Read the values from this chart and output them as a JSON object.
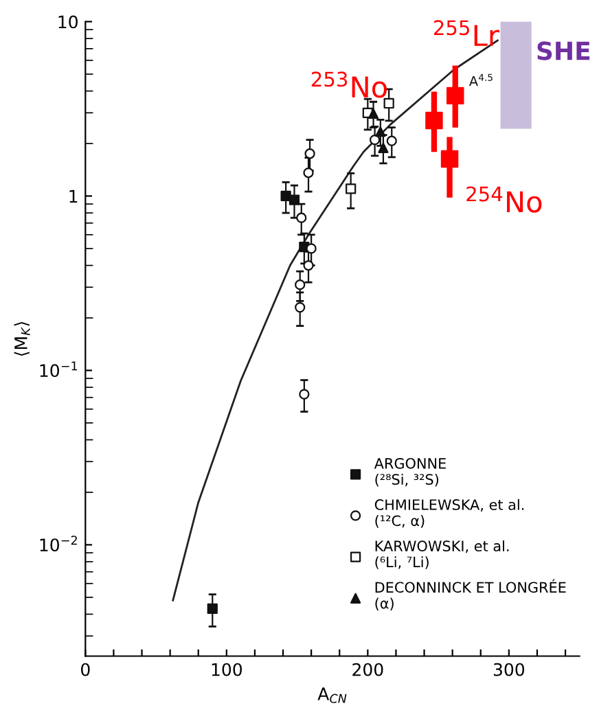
{
  "chart_data": {
    "type": "scatter",
    "xlabel": "A$_{CN}$",
    "ylabel": "⟨M$_{K}$⟩",
    "log": "y",
    "grid": false,
    "legend": "bottom right",
    "xlim": [
      0,
      350
    ],
    "ylim": [
      0.0023,
      10
    ],
    "xticks": [
      0,
      {
        "value": 20,
        "label": null
      },
      {
        "value": 40,
        "label": null
      },
      {
        "value": 60,
        "label": null
      },
      {
        "value": 80,
        "label": null
      },
      100,
      {
        "value": 120,
        "label": null
      },
      {
        "value": 140,
        "label": null
      },
      {
        "value": 160,
        "label": null
      },
      {
        "value": 180,
        "label": null
      },
      200,
      {
        "value": 220,
        "label": null
      },
      {
        "value": 240,
        "label": null
      },
      {
        "value": 260,
        "label": null
      },
      {
        "value": 280,
        "label": null
      },
      300,
      {
        "value": 320,
        "label": null
      },
      {
        "value": 340,
        "label": null
      }
    ],
    "yticks": [
      {
        "value": 0.01,
        "label": "10$^{−2}$"
      },
      {
        "value": 0.1,
        "label": "10$^{−1}$"
      },
      1,
      10
    ],
    "series": [
      {
        "type": "line",
        "color": "#222222",
        "x": [
          62,
          80,
          110,
          145,
          158,
          190,
          197,
          216,
          261,
          292
        ],
        "values": [
          0.0048,
          0.0175,
          0.087,
          0.4,
          0.6,
          1.49,
          1.79,
          2.57,
          5.3,
          7.8
        ]
      },
      {
        "name": "ARGONNE\n(²⁸Si, ³²S)",
        "marker": "square",
        "color": "#111111",
        "x": [
          90,
          142,
          148,
          155
        ],
        "values": [
          0.0043,
          1.0,
          0.95,
          0.51
        ],
        "errors": [
          0.0009,
          0.2,
          0.2,
          0.1
        ]
      },
      {
        "name": "CHMIELEWSKA, et al.\n(¹²C, α)",
        "marker": "circle",
        "color": "#ffffff",
        "x": [
          159,
          158,
          153,
          160,
          158,
          152,
          152,
          155,
          205,
          217
        ],
        "values": [
          1.75,
          1.36,
          0.75,
          0.5,
          0.4,
          0.31,
          0.23,
          0.073,
          2.1,
          2.07
        ],
        "errors": [
          0.35,
          0.3,
          0.15,
          0.1,
          0.08,
          0.06,
          0.05,
          0.015,
          0.4,
          0.4
        ]
      },
      {
        "name": "KARWOWSKI, et al.\n(⁶Li, ⁷Li)",
        "marker": "square",
        "color": "#ffffff",
        "x": [
          188,
          215,
          200
        ],
        "values": [
          1.1,
          3.4,
          3.0
        ],
        "errors": [
          0.25,
          0.7,
          0.6
        ]
      },
      {
        "name": "DECONNINCK ET LONGRÉE\n(α)",
        "marker": "triangle",
        "color": "#111111",
        "x": [
          204,
          209,
          211
        ],
        "values": [
          2.97,
          2.34,
          1.89
        ],
        "errors": [
          0.5,
          0.4,
          0.35
        ]
      },
      {
        "marker": "square",
        "color": "#ff0000",
        "x": [
          247,
          262,
          258
        ],
        "values": [
          2.71,
          3.76,
          1.63
        ],
        "errors": [
          [
            1.79,
            3.97
          ],
          [
            2.47,
            5.6
          ],
          [
            0.98,
            2.18
          ]
        ]
      },
      {
        "type": "bar",
        "name": "SHE",
        "color": "#c8bedc",
        "x": [
          305
        ],
        "base": [
          2.43
        ],
        "values": [
          7.6
        ]
      }
    ],
    "annotations": [
      {
        "text": "$^{253}$No",
        "x": 247,
        "y": 2.71
      },
      {
        "text": "$^{255}$Lr",
        "x": 262,
        "y": 3.76
      },
      {
        "text": "$^{254}$No",
        "x": 258,
        "y": 1.63
      },
      {
        "text": "A$^{4.5}$",
        "x": 265,
        "y": 5.5
      }
    ]
  }
}
